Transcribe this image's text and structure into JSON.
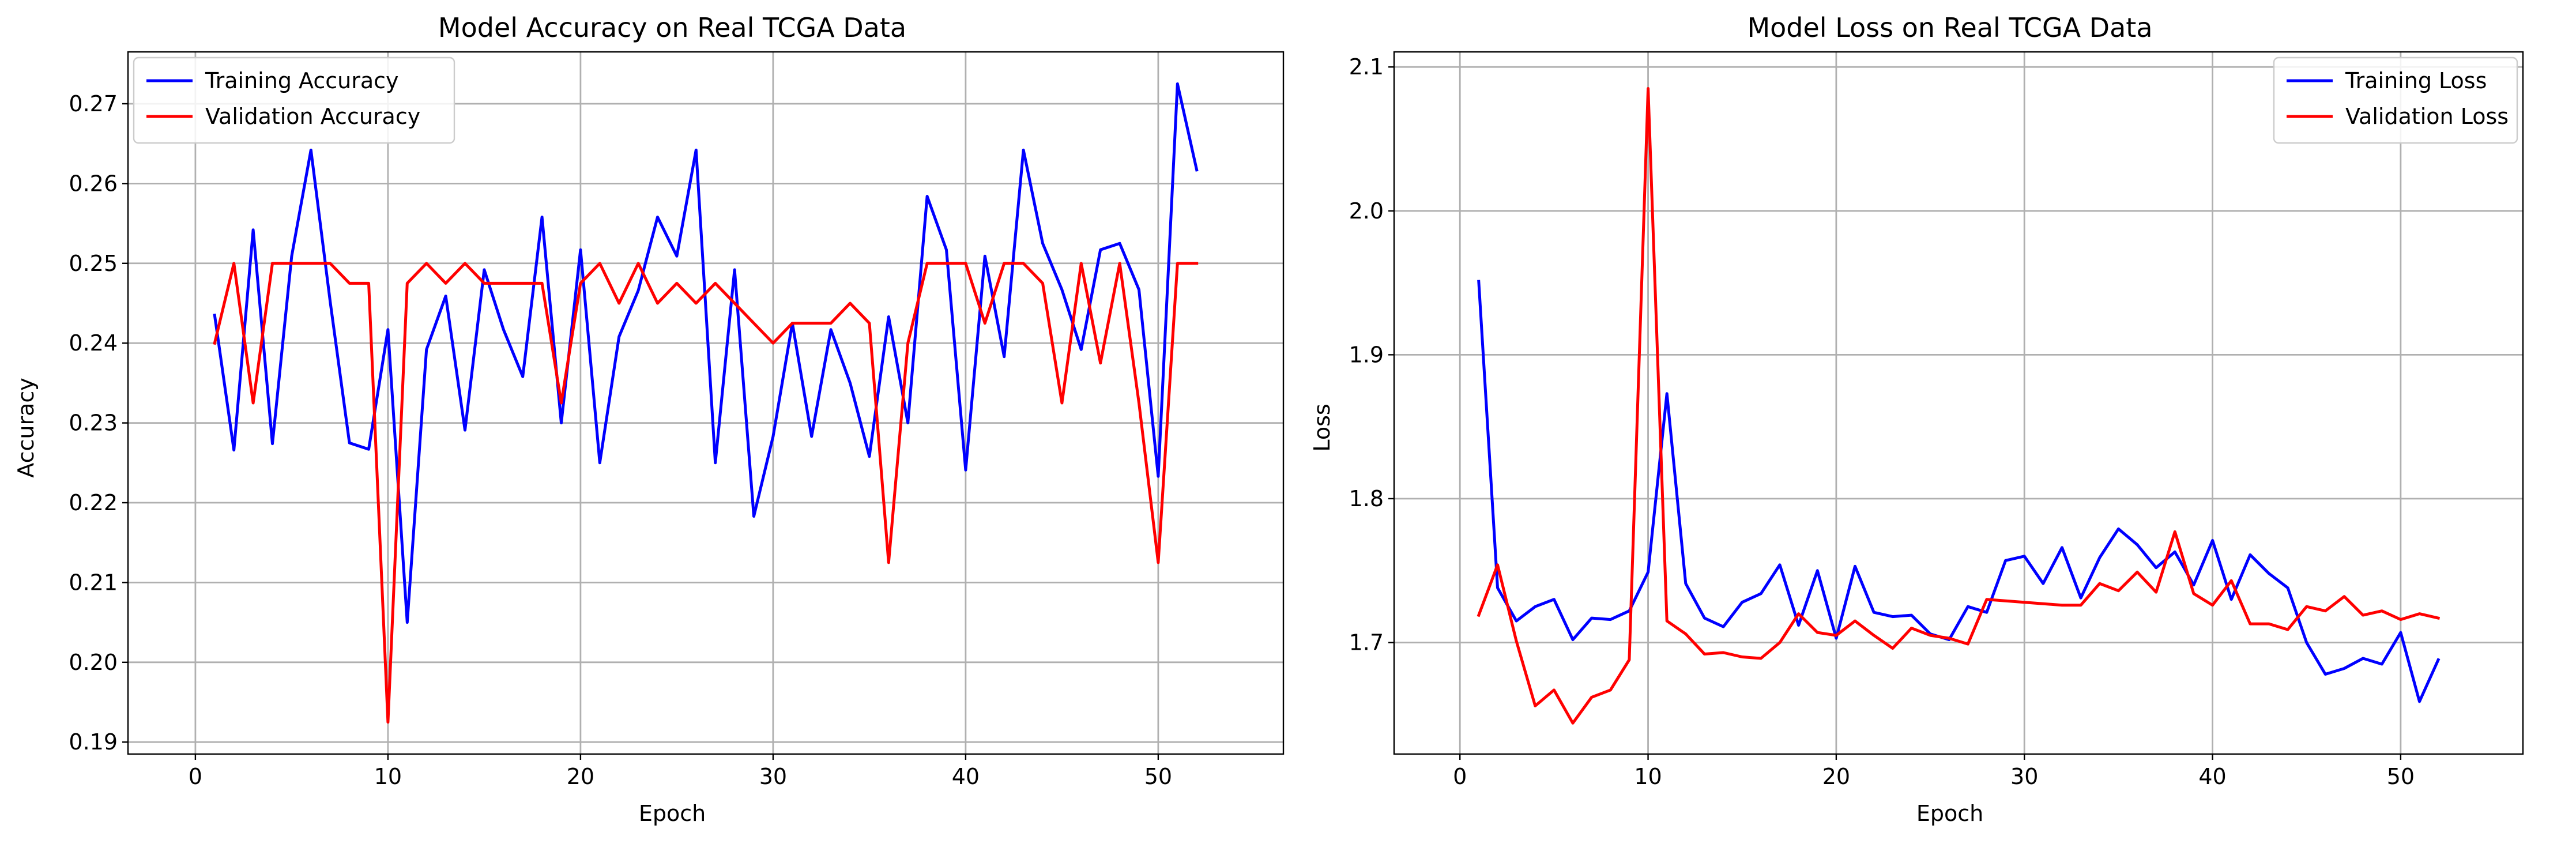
{
  "chart_data": [
    {
      "type": "line",
      "title": "Model Accuracy on Real TCGA Data",
      "xlabel": "Epoch",
      "ylabel": "Accuracy",
      "xlim": [
        -3.5,
        56.5
      ],
      "ylim": [
        0.1885,
        0.2765
      ],
      "xticks": [
        0,
        10,
        20,
        30,
        40,
        50
      ],
      "xtick_labels": [
        "0",
        "10",
        "20",
        "30",
        "40",
        "50"
      ],
      "yticks": [
        0.19,
        0.2,
        0.21,
        0.22,
        0.23,
        0.24,
        0.25,
        0.26,
        0.27
      ],
      "ytick_labels": [
        "0.19",
        "0.20",
        "0.21",
        "0.22",
        "0.23",
        "0.24",
        "0.25",
        "0.26",
        "0.27"
      ],
      "grid": true,
      "legend": "upper-left",
      "x": [
        1,
        2,
        3,
        4,
        5,
        6,
        7,
        8,
        9,
        10,
        11,
        12,
        13,
        14,
        15,
        16,
        17,
        18,
        19,
        20,
        21,
        22,
        23,
        24,
        25,
        26,
        27,
        28,
        29,
        30,
        31,
        32,
        33,
        34,
        35,
        36,
        37,
        38,
        39,
        40,
        41,
        42,
        43,
        44,
        45,
        46,
        47,
        48,
        49,
        50,
        51,
        52
      ],
      "series": [
        {
          "name": "Training Accuracy",
          "color": "#0000ff",
          "values": [
            0.2435,
            0.2266,
            0.2542,
            0.2274,
            0.2509,
            0.2642,
            0.2452,
            0.2275,
            0.2267,
            0.2417,
            0.205,
            0.2392,
            0.2459,
            0.2291,
            0.2492,
            0.2417,
            0.2358,
            0.2558,
            0.23,
            0.2517,
            0.225,
            0.2408,
            0.2466,
            0.2558,
            0.2509,
            0.2642,
            0.225,
            0.2492,
            0.2183,
            0.2283,
            0.2425,
            0.2283,
            0.2417,
            0.235,
            0.2258,
            0.2433,
            0.23,
            0.2584,
            0.2517,
            0.2241,
            0.2509,
            0.2383,
            0.2642,
            0.2525,
            0.2467,
            0.2392,
            0.2517,
            0.2525,
            0.2467,
            0.2233,
            0.2725,
            0.2617
          ]
        },
        {
          "name": "Validation Accuracy",
          "color": "#ff0000",
          "values": [
            0.24,
            0.25,
            0.2325,
            0.25,
            0.25,
            0.25,
            0.25,
            0.2475,
            0.2475,
            0.1925,
            0.2475,
            0.25,
            0.2475,
            0.25,
            0.2475,
            0.2475,
            0.2475,
            0.2475,
            0.2325,
            0.2475,
            0.25,
            0.245,
            0.25,
            0.245,
            0.2475,
            0.245,
            0.2475,
            0.245,
            0.2425,
            0.24,
            0.2425,
            0.2425,
            0.2425,
            0.245,
            0.2425,
            0.2125,
            0.24,
            0.25,
            0.25,
            0.25,
            0.2425,
            0.25,
            0.25,
            0.2475,
            0.2325,
            0.25,
            0.2375,
            0.25,
            0.2325,
            0.2125,
            0.25,
            0.25
          ]
        }
      ]
    },
    {
      "type": "line",
      "title": "Model Loss on Real TCGA Data",
      "xlabel": "Epoch",
      "ylabel": "Loss",
      "xlim": [
        -3.5,
        56.5
      ],
      "ylim": [
        1.6225,
        2.1105
      ],
      "xticks": [
        0,
        10,
        20,
        30,
        40,
        50
      ],
      "xtick_labels": [
        "0",
        "10",
        "20",
        "30",
        "40",
        "50"
      ],
      "yticks": [
        1.7,
        1.8,
        1.9,
        2.0,
        2.1
      ],
      "ytick_labels": [
        "1.7",
        "1.8",
        "1.9",
        "2.0",
        "2.1"
      ],
      "grid": true,
      "legend": "upper-right",
      "x": [
        1,
        2,
        3,
        4,
        5,
        6,
        7,
        8,
        9,
        10,
        11,
        12,
        13,
        14,
        15,
        16,
        17,
        18,
        19,
        20,
        21,
        22,
        23,
        24,
        25,
        26,
        27,
        28,
        29,
        30,
        31,
        32,
        33,
        34,
        35,
        36,
        37,
        38,
        39,
        40,
        41,
        42,
        43,
        44,
        45,
        46,
        47,
        48,
        49,
        50,
        51,
        52
      ],
      "series": [
        {
          "name": "Training Loss",
          "color": "#0000ff",
          "values": [
            1.951,
            1.738,
            1.715,
            1.725,
            1.73,
            1.702,
            1.717,
            1.716,
            1.722,
            1.749,
            1.873,
            1.741,
            1.717,
            1.711,
            1.728,
            1.734,
            1.754,
            1.712,
            1.75,
            1.703,
            1.753,
            1.721,
            1.718,
            1.719,
            1.706,
            1.702,
            1.725,
            1.721,
            1.757,
            1.76,
            1.741,
            1.766,
            1.731,
            1.759,
            1.779,
            1.768,
            1.752,
            1.763,
            1.74,
            1.771,
            1.73,
            1.761,
            1.748,
            1.738,
            1.7,
            1.678,
            1.682,
            1.689,
            1.685,
            1.707,
            1.659,
            1.688
          ]
        },
        {
          "name": "Validation Loss",
          "color": "#ff0000",
          "values": [
            1.719,
            1.754,
            1.701,
            1.656,
            1.667,
            1.644,
            1.662,
            1.667,
            1.688,
            2.085,
            1.715,
            1.706,
            1.692,
            1.693,
            1.69,
            1.689,
            1.7,
            1.72,
            1.707,
            1.705,
            1.715,
            1.705,
            1.696,
            1.71,
            1.705,
            1.703,
            1.699,
            1.73,
            1.729,
            1.728,
            1.727,
            1.726,
            1.726,
            1.741,
            1.736,
            1.749,
            1.735,
            1.777,
            1.734,
            1.726,
            1.743,
            1.713,
            1.713,
            1.709,
            1.725,
            1.722,
            1.732,
            1.719,
            1.722,
            1.716,
            1.72,
            1.717
          ]
        }
      ]
    }
  ]
}
